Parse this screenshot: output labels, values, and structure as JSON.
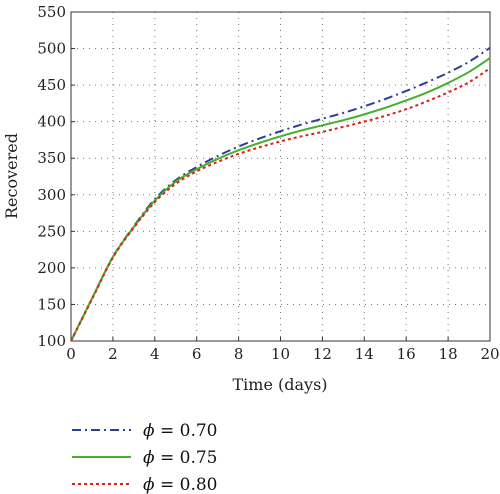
{
  "chart_data": {
    "type": "line",
    "xlabel": "Time (days)",
    "ylabel": "Recovered",
    "xlim": [
      0,
      20
    ],
    "ylim": [
      100,
      550
    ],
    "xticks": [
      0,
      2,
      4,
      6,
      8,
      10,
      12,
      14,
      16,
      18,
      20
    ],
    "yticks": [
      100,
      150,
      200,
      250,
      300,
      350,
      400,
      450,
      500,
      550
    ],
    "grid": true,
    "legend_position": "below",
    "x": [
      0,
      1,
      2,
      3,
      4,
      5,
      6,
      7,
      8,
      9,
      10,
      11,
      12,
      13,
      14,
      15,
      16,
      17,
      18,
      19,
      20
    ],
    "series": [
      {
        "name": "ϕ = 0.70",
        "legend_symbol": "ϕ",
        "legend_value": "= 0.70",
        "color": "#2b3f99",
        "dash": "dashdot",
        "values": [
          100,
          158,
          215,
          257,
          294,
          320,
          338,
          353,
          366,
          377,
          387,
          396,
          404,
          412,
          421,
          431,
          442,
          454,
          467,
          482,
          501
        ]
      },
      {
        "name": "ϕ = 0.75",
        "legend_symbol": "ϕ",
        "legend_value": "= 0.75",
        "color": "#44b02e",
        "dash": "solid",
        "values": [
          100,
          158,
          215,
          256,
          292,
          318,
          335,
          349,
          361,
          371,
          380,
          388,
          395,
          402,
          410,
          419,
          429,
          440,
          453,
          468,
          487
        ]
      },
      {
        "name": "ϕ = 0.80",
        "legend_symbol": "ϕ",
        "legend_value": "= 0.80",
        "color": "#e0201b",
        "dash": "dotted",
        "values": [
          100,
          157,
          214,
          255,
          290,
          315,
          332,
          345,
          356,
          365,
          373,
          380,
          386,
          393,
          400,
          408,
          417,
          428,
          440,
          454,
          473
        ]
      }
    ]
  }
}
